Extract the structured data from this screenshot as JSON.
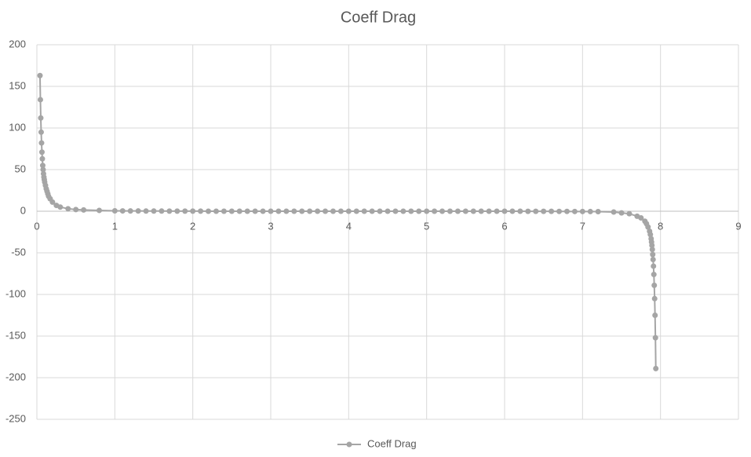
{
  "chart_data": {
    "type": "scatter-line",
    "title": "Coeff Drag",
    "x": [
      0.04,
      0.045,
      0.05,
      0.055,
      0.06,
      0.065,
      0.07,
      0.075,
      0.08,
      0.085,
      0.09,
      0.095,
      0.1,
      0.11,
      0.12,
      0.13,
      0.14,
      0.15,
      0.17,
      0.2,
      0.25,
      0.3,
      0.4,
      0.5,
      0.6,
      0.8,
      1,
      1.1,
      1.2,
      1.3,
      1.4,
      1.5,
      1.6,
      1.7,
      1.8,
      1.9,
      2,
      2.1,
      2.2,
      2.3,
      2.4,
      2.5,
      2.6,
      2.7,
      2.8,
      2.9,
      3,
      3.1,
      3.2,
      3.3,
      3.4,
      3.5,
      3.6,
      3.7,
      3.8,
      3.9,
      4,
      4.1,
      4.2,
      4.3,
      4.4,
      4.5,
      4.6,
      4.7,
      4.8,
      4.9,
      5,
      5.1,
      5.2,
      5.3,
      5.4,
      5.5,
      5.6,
      5.7,
      5.8,
      5.9,
      6,
      6.1,
      6.2,
      6.3,
      6.4,
      6.5,
      6.6,
      6.7,
      6.8,
      6.9,
      7,
      7.1,
      7.2,
      7.4,
      7.5,
      7.6,
      7.7,
      7.75,
      7.8,
      7.82,
      7.84,
      7.86,
      7.87,
      7.88,
      7.885,
      7.89,
      7.895,
      7.9,
      7.905,
      7.91,
      7.915,
      7.92,
      7.925,
      7.93,
      7.935,
      7.94,
      7.945,
      7.95
    ],
    "series": [
      {
        "name": "Coeff Drag",
        "color": "#a5a5a5",
        "values": [
          163,
          134,
          112,
          95,
          82,
          71,
          63,
          55,
          50,
          45,
          41,
          38,
          35,
          31,
          27,
          24,
          21,
          18,
          15,
          11,
          7,
          5,
          3,
          2,
          1.5,
          1,
          0.5,
          0.4,
          0.3,
          0.3,
          0.2,
          0.2,
          0.2,
          0.1,
          0.1,
          0.1,
          0.1,
          0.1,
          0,
          0,
          0,
          0,
          0,
          0,
          0,
          0,
          0,
          0,
          0,
          0,
          0,
          0,
          0,
          0,
          0,
          0,
          0,
          0,
          0,
          0,
          0,
          0,
          0,
          0,
          0,
          0,
          0,
          0,
          0,
          0,
          0,
          0,
          0,
          0,
          0,
          0,
          0,
          0,
          0,
          -0.1,
          -0.1,
          -0.1,
          -0.1,
          -0.2,
          -0.2,
          -0.3,
          -0.3,
          -0.4,
          -0.5,
          -1,
          -2,
          -3,
          -6,
          -8,
          -12,
          -15,
          -19,
          -24,
          -28,
          -33,
          -37,
          -41,
          -46,
          -52,
          -58,
          -66,
          -76,
          -89,
          -105,
          -125,
          -152,
          -189
        ]
      }
    ],
    "xlim": [
      0,
      9
    ],
    "xticks": [
      0,
      1,
      2,
      3,
      4,
      5,
      6,
      7,
      8,
      9
    ],
    "ylim": [
      -250,
      200
    ],
    "yticks": [
      -250,
      -200,
      -150,
      -100,
      -50,
      0,
      50,
      100,
      150,
      200
    ],
    "grid": true,
    "legend": "bottom"
  }
}
